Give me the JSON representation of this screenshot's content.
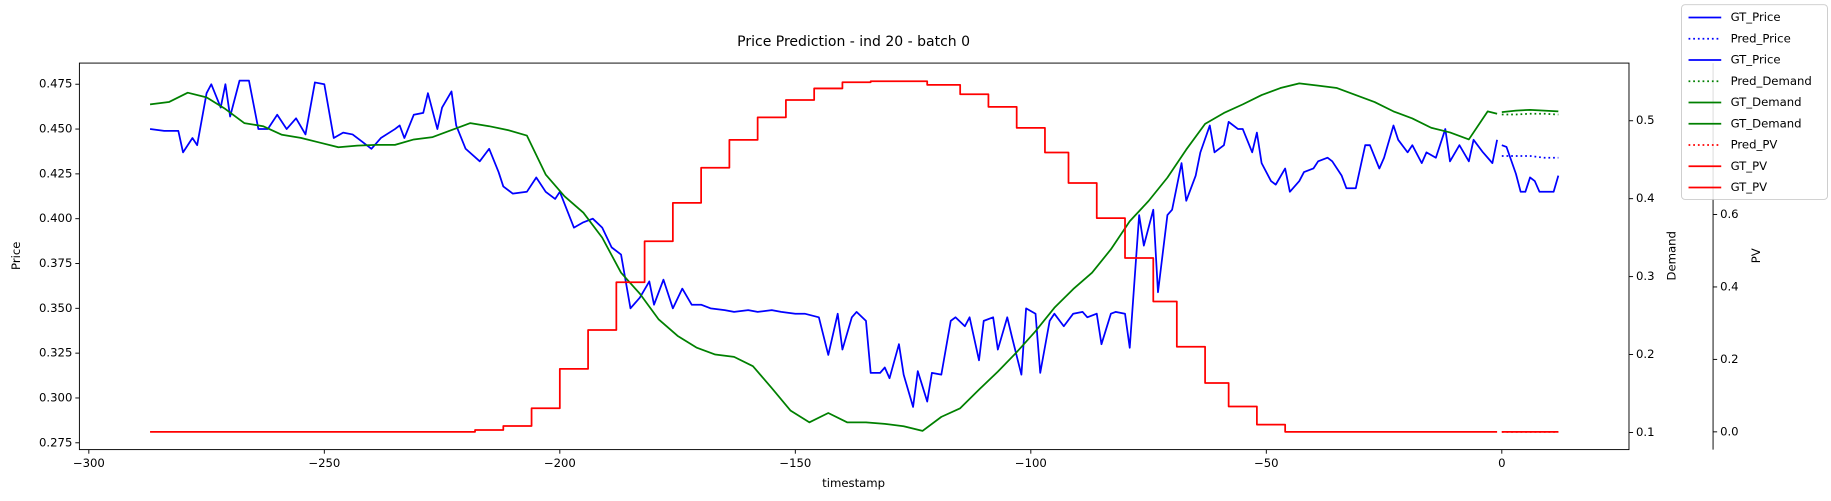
{
  "chart_data": {
    "type": "line",
    "title": "Price Prediction - ind 20 - batch 0",
    "xlabel": "timestamp",
    "ylabel": "Price",
    "ylabel_color": "#0000ff",
    "y2label": "Demand",
    "y2label_color": "#008000",
    "y3label": "PV",
    "y3label_color": "#ff0000",
    "xlim": [
      -302,
      27
    ],
    "xticks": [
      {
        "value": -300,
        "label": "−300"
      },
      {
        "value": -250,
        "label": "−250"
      },
      {
        "value": -200,
        "label": "−200"
      },
      {
        "value": -150,
        "label": "−150"
      },
      {
        "value": -100,
        "label": "−100"
      },
      {
        "value": -50,
        "label": "−50"
      },
      0
    ],
    "ylim": [
      0.2712,
      0.4868
    ],
    "yticks": [
      0.275,
      {
        "value": 0.3,
        "label": "0.300"
      },
      0.325,
      {
        "value": 0.35,
        "label": "0.350"
      },
      0.375,
      {
        "value": 0.4,
        "label": "0.400"
      },
      0.425,
      {
        "value": 0.45,
        "label": "0.450"
      },
      0.475
    ],
    "y2lim": [
      0.078,
      0.574
    ],
    "y2ticks": [
      0.1,
      0.2,
      0.3,
      0.4,
      0.5
    ],
    "y3lim": [
      -0.049,
      1.018
    ],
    "y3ticks": [
      {
        "value": 0,
        "label": "0.0"
      },
      0.2,
      0.4,
      0.6
    ],
    "grid": false,
    "legend": "upper right",
    "series": [
      {
        "name": "GT_Price",
        "color": "#0000ff",
        "style": "solid",
        "axis": "y",
        "x": [
          -287,
          -284,
          -281,
          -280,
          -278,
          -277,
          -275,
          -274,
          -272,
          -271,
          -270,
          -268,
          -266,
          -264,
          -262,
          -260,
          -258,
          -256,
          -254,
          -252,
          -250,
          -248,
          -246,
          -244,
          -242,
          -240,
          -238,
          -235,
          -234,
          -233,
          -231,
          -229,
          -228,
          -226,
          -225,
          -223,
          -222,
          -220,
          -217,
          -215,
          -213,
          -212,
          -210,
          -207,
          -205,
          -203,
          -201,
          -200,
          -197,
          -195,
          -193,
          -191,
          -189,
          -187,
          -185,
          -183,
          -181,
          -180,
          -178,
          -176,
          -174,
          -172,
          -170,
          -168,
          -165,
          -163,
          -160,
          -158,
          -155,
          -153,
          -150,
          -148,
          -145,
          -143,
          -141,
          -140,
          -138,
          -137,
          -135,
          -134,
          -132,
          -131,
          -130,
          -128,
          -127,
          -125,
          -124,
          -122,
          -121,
          -119,
          -117,
          -116,
          -114,
          -113,
          -111,
          -110,
          -108,
          -107,
          -105,
          -104,
          -102,
          -101,
          -99,
          -98,
          -96,
          -95,
          -93,
          -91,
          -89,
          -88,
          -86,
          -85,
          -83,
          -82,
          -80,
          -79,
          -77,
          -76,
          -74,
          -73,
          -71,
          -70,
          -68,
          -67,
          -65,
          -64,
          -62,
          -61,
          -59,
          -58,
          -56,
          -55,
          -53,
          -52,
          -51,
          -49,
          -48,
          -46,
          -45,
          -43,
          -42,
          -40,
          -39,
          -37,
          -36,
          -34,
          -33,
          -31,
          -29,
          -28,
          -26,
          -25,
          -23,
          -22,
          -20,
          -19,
          -17,
          -16,
          -14,
          -12,
          -11,
          -9,
          -7,
          -6,
          -4,
          -2,
          -1
        ],
        "values": [
          0.45,
          0.449,
          0.449,
          0.437,
          0.445,
          0.441,
          0.47,
          0.475,
          0.462,
          0.475,
          0.457,
          0.477,
          0.477,
          0.45,
          0.45,
          0.458,
          0.45,
          0.456,
          0.447,
          0.476,
          0.475,
          0.445,
          0.448,
          0.447,
          0.443,
          0.439,
          0.445,
          0.45,
          0.452,
          0.445,
          0.458,
          0.459,
          0.47,
          0.45,
          0.462,
          0.471,
          0.452,
          0.439,
          0.432,
          0.439,
          0.426,
          0.418,
          0.414,
          0.415,
          0.423,
          0.415,
          0.411,
          0.415,
          0.395,
          0.398,
          0.4,
          0.395,
          0.384,
          0.38,
          0.35,
          0.356,
          0.365,
          0.352,
          0.366,
          0.35,
          0.361,
          0.352,
          0.352,
          0.35,
          0.349,
          0.348,
          0.349,
          0.348,
          0.349,
          0.348,
          0.347,
          0.347,
          0.345,
          0.324,
          0.347,
          0.327,
          0.345,
          0.348,
          0.343,
          0.314,
          0.314,
          0.317,
          0.311,
          0.33,
          0.313,
          0.295,
          0.315,
          0.298,
          0.314,
          0.313,
          0.343,
          0.345,
          0.34,
          0.345,
          0.321,
          0.343,
          0.345,
          0.327,
          0.345,
          0.334,
          0.313,
          0.35,
          0.347,
          0.314,
          0.343,
          0.347,
          0.34,
          0.347,
          0.348,
          0.345,
          0.347,
          0.33,
          0.347,
          0.348,
          0.347,
          0.328,
          0.402,
          0.385,
          0.405,
          0.359,
          0.402,
          0.405,
          0.431,
          0.41,
          0.424,
          0.437,
          0.452,
          0.437,
          0.441,
          0.454,
          0.45,
          0.45,
          0.437,
          0.448,
          0.431,
          0.421,
          0.419,
          0.428,
          0.415,
          0.421,
          0.426,
          0.428,
          0.432,
          0.434,
          0.432,
          0.424,
          0.417,
          0.417,
          0.441,
          0.441,
          0.428,
          0.434,
          0.452,
          0.444,
          0.437,
          0.441,
          0.431,
          0.437,
          0.434,
          0.45,
          0.432,
          0.441,
          0.432,
          0.444,
          0.437,
          0.431,
          0.444
        ]
      },
      {
        "name": "Pred_Price",
        "color": "#0000ff",
        "style": "dotted",
        "axis": "y",
        "x": [
          0,
          3,
          6,
          9,
          12
        ],
        "values": [
          0.435,
          0.435,
          0.435,
          0.434,
          0.434
        ]
      },
      {
        "name": "GT_Price",
        "color": "#0000ff",
        "style": "solid",
        "axis": "y",
        "x": [
          0,
          1,
          3,
          4,
          5,
          6,
          7,
          8,
          10,
          11,
          12
        ],
        "values": [
          0.441,
          0.44,
          0.425,
          0.415,
          0.415,
          0.423,
          0.421,
          0.415,
          0.415,
          0.415,
          0.424
        ]
      },
      {
        "name": "Pred_Demand",
        "color": "#008000",
        "style": "dotted",
        "axis": "y2",
        "x": [
          0,
          3,
          6,
          9,
          12
        ],
        "values": [
          0.508,
          0.508,
          0.509,
          0.509,
          0.508
        ]
      },
      {
        "name": "GT_Demand",
        "color": "#008000",
        "style": "solid",
        "axis": "y2",
        "x": [
          -287,
          -283,
          -279,
          -275,
          -271,
          -267,
          -263,
          -259,
          -255,
          -251,
          -247,
          -243,
          -239,
          -235,
          -231,
          -227,
          -223,
          -219,
          -215,
          -211,
          -207,
          -203,
          -199,
          -195,
          -191,
          -187,
          -183,
          -179,
          -175,
          -171,
          -167,
          -163,
          -159,
          -155,
          -151,
          -147,
          -143,
          -139,
          -135,
          -131,
          -127,
          -123,
          -119,
          -115,
          -111,
          -107,
          -103,
          -99,
          -95,
          -91,
          -87,
          -83,
          -79,
          -75,
          -71,
          -67,
          -63,
          -59,
          -55,
          -51,
          -47,
          -43,
          -39,
          -35,
          -31,
          -27,
          -23,
          -19,
          -15,
          -11,
          -7,
          -3,
          -1
        ],
        "values": [
          0.521,
          0.524,
          0.536,
          0.53,
          0.515,
          0.497,
          0.493,
          0.482,
          0.478,
          0.472,
          0.466,
          0.468,
          0.469,
          0.469,
          0.476,
          0.479,
          0.488,
          0.497,
          0.493,
          0.488,
          0.481,
          0.431,
          0.403,
          0.382,
          0.35,
          0.305,
          0.278,
          0.245,
          0.224,
          0.209,
          0.2,
          0.197,
          0.185,
          0.157,
          0.128,
          0.113,
          0.125,
          0.113,
          0.113,
          0.111,
          0.108,
          0.102,
          0.12,
          0.131,
          0.155,
          0.178,
          0.203,
          0.23,
          0.26,
          0.284,
          0.305,
          0.335,
          0.371,
          0.397,
          0.427,
          0.463,
          0.496,
          0.51,
          0.521,
          0.533,
          0.542,
          0.548,
          0.545,
          0.542,
          0.533,
          0.524,
          0.512,
          0.503,
          0.491,
          0.485,
          0.476,
          0.512,
          0.509
        ]
      },
      {
        "name": "GT_Demand",
        "color": "#008000",
        "style": "solid",
        "axis": "y2",
        "x": [
          0,
          3,
          6,
          9,
          12
        ],
        "values": [
          0.511,
          0.513,
          0.514,
          0.513,
          0.512
        ]
      },
      {
        "name": "Pred_PV",
        "color": "#ff0000",
        "style": "dotted",
        "axis": "y3",
        "x": [
          0,
          3,
          6,
          9,
          12
        ],
        "values": [
          0,
          0,
          0,
          0,
          0
        ]
      },
      {
        "name": "GT_PV",
        "color": "#ff0000",
        "style": "solid",
        "axis": "y3",
        "drawstyle": "steps-post",
        "x": [
          -287,
          -218,
          -212,
          -206,
          -200,
          -194,
          -188,
          -182,
          -176,
          -170,
          -164,
          -158,
          -152,
          -146,
          -140,
          -134,
          -128,
          -122,
          -115,
          -109,
          -103,
          -97,
          -92,
          -86,
          -80,
          -74,
          -69,
          -63,
          -58,
          -52,
          -46,
          -1
        ],
        "values": [
          0,
          0.005,
          0.016,
          0.065,
          0.174,
          0.281,
          0.413,
          0.526,
          0.632,
          0.729,
          0.806,
          0.868,
          0.916,
          0.948,
          0.965,
          0.968,
          0.968,
          0.958,
          0.932,
          0.897,
          0.839,
          0.771,
          0.687,
          0.59,
          0.48,
          0.36,
          0.235,
          0.135,
          0.07,
          0.02,
          0,
          0
        ]
      },
      {
        "name": "GT_PV",
        "color": "#ff0000",
        "style": "solid",
        "axis": "y3",
        "x": [
          0,
          12
        ],
        "values": [
          0,
          0
        ]
      }
    ]
  }
}
